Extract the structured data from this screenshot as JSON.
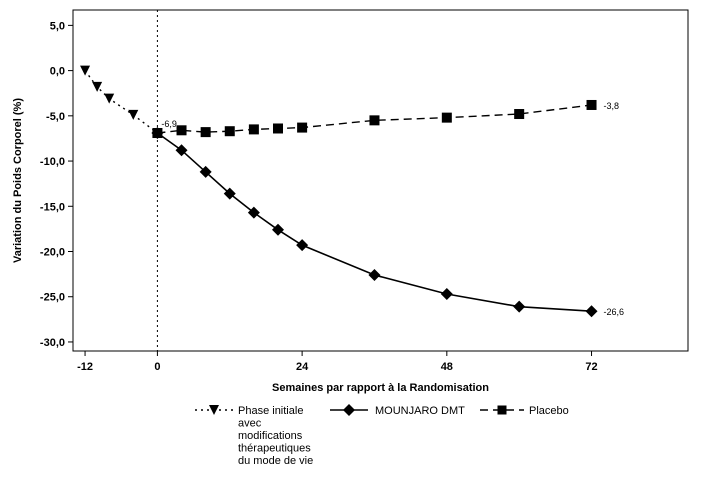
{
  "chart_data": {
    "type": "line",
    "xlabel": "Semaines par rapport à la Randomisation",
    "ylabel": "Variation du Poids Corporel (%)",
    "xlim": [
      -14,
      88
    ],
    "ylim": [
      -31,
      6.7
    ],
    "x_ticks": [
      -12,
      0,
      24,
      48,
      72
    ],
    "x_tick_labels": [
      "-12",
      "0",
      "24",
      "48",
      "72"
    ],
    "y_ticks": [
      5,
      0,
      -5,
      -10,
      -15,
      -20,
      -25,
      -30
    ],
    "y_tick_labels": [
      "5,0",
      "0,0",
      "-5,0",
      "-10,0",
      "-15,0",
      "-20,0",
      "-25,0",
      "-30,0"
    ],
    "reference_line_x": 0,
    "grid": false,
    "legend_position": "bottom",
    "series": [
      {
        "name": "Phase initiale avec modifications thérapeutiques du mode de vie",
        "legend_lines": [
          "Phase initiale",
          "avec",
          "modifications",
          "thérapeutiques",
          "du mode de vie"
        ],
        "line_style": "dotted",
        "marker": "triangle-down",
        "x": [
          -12,
          -10,
          -8,
          -4,
          0
        ],
        "y": [
          0.0,
          -1.8,
          -3.1,
          -4.9,
          -6.9
        ]
      },
      {
        "name": "MOUNJARO DMT",
        "line_style": "solid",
        "marker": "diamond",
        "x": [
          0,
          4,
          8,
          12,
          16,
          20,
          24,
          36,
          48,
          60,
          72
        ],
        "y": [
          -6.9,
          -8.8,
          -11.2,
          -13.6,
          -15.7,
          -17.6,
          -19.3,
          -22.6,
          -24.7,
          -26.1,
          -26.6
        ],
        "end_label": "-26,6"
      },
      {
        "name": "Placebo",
        "line_style": "dashed",
        "marker": "square",
        "x": [
          0,
          4,
          8,
          12,
          16,
          20,
          24,
          36,
          48,
          60,
          72
        ],
        "y": [
          -6.9,
          -6.6,
          -6.8,
          -6.7,
          -6.5,
          -6.4,
          -6.3,
          -5.5,
          -5.2,
          -4.8,
          -3.8
        ],
        "end_label": "-3,8"
      }
    ],
    "annotations": [
      {
        "text": "-6,9",
        "x": 0,
        "y": -6.9
      }
    ]
  }
}
